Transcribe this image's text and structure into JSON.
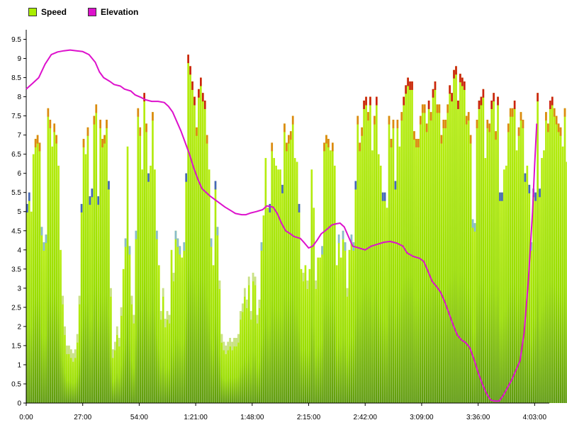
{
  "chart_data": {
    "type": "bar",
    "legend": [
      {
        "name": "Speed",
        "color": "#aaee00"
      },
      {
        "name": "Elevation",
        "color": "#dd11cc"
      }
    ],
    "x_ticks": [
      "0:00",
      "27:00",
      "54:00",
      "1:21:00",
      "1:48:00",
      "2:15:00",
      "2:42:00",
      "3:09:00",
      "3:36:00",
      "4:03:00"
    ],
    "y_ticks": [
      "0",
      "0.5",
      "1",
      "1.5",
      "2",
      "2.5",
      "3",
      "3.5",
      "4",
      "4.5",
      "5",
      "5.5",
      "6",
      "6.5",
      "7",
      "7.5",
      "8",
      "8.5",
      "9",
      "9.5"
    ],
    "xlim_minutes": [
      0,
      250
    ],
    "ylim": [
      0,
      9.75
    ],
    "grid": false,
    "legend_position": "top-left",
    "speed_minute_step": 1,
    "speed": [
      5.2,
      5.5,
      5.0,
      6.5,
      6.9,
      7.0,
      6.8,
      4.6,
      4.2,
      4.4,
      7.7,
      7.4,
      6.7,
      7.3,
      7.0,
      6.2,
      4.0,
      2.8,
      2.0,
      1.5,
      1.5,
      1.4,
      1.3,
      1.4,
      1.8,
      2.8,
      5.2,
      6.9,
      6.5,
      7.2,
      5.4,
      5.6,
      7.5,
      7.8,
      5.4,
      7.4,
      6.9,
      7.0,
      7.4,
      5.8,
      3.0,
      1.4,
      1.6,
      2.0,
      1.7,
      2.5,
      3.5,
      4.3,
      6.7,
      4.1,
      2.8,
      2.3,
      4.5,
      7.7,
      7.2,
      6.1,
      8.1,
      7.3,
      6.0,
      6.2,
      7.6,
      6.1,
      4.5,
      3.6,
      2.4,
      3.0,
      2.2,
      2.4,
      2.3,
      4.0,
      3.4,
      4.5,
      4.3,
      4.1,
      3.8,
      4.2,
      6.0,
      9.1,
      8.8,
      8.4,
      8.0,
      7.2,
      8.2,
      8.5,
      8.1,
      7.9,
      7.0,
      6.1,
      4.3,
      3.6,
      5.8,
      4.6,
      3.2,
      1.8,
      1.6,
      1.5,
      1.6,
      1.7,
      1.6,
      1.7,
      1.7,
      1.8,
      2.4,
      2.6,
      3.0,
      2.7,
      3.3,
      2.4,
      3.4,
      3.3,
      2.3,
      2.7,
      4.2,
      4.9,
      6.4,
      5.1,
      5.2,
      6.8,
      6.4,
      6.2,
      6.1,
      6.1,
      5.7,
      7.3,
      6.8,
      7.0,
      7.1,
      7.5,
      6.4,
      6.3,
      5.2,
      3.5,
      3.4,
      3.6,
      3.2,
      3.5,
      6.1,
      5.1,
      3.2,
      3.8,
      3.8,
      4.1,
      6.8,
      7.0,
      6.9,
      6.6,
      6.8,
      6.2,
      3.6,
      4.4,
      3.8,
      4.5,
      4.2,
      3.0,
      4.0,
      4.4,
      4.2,
      5.8,
      7.5,
      6.8,
      7.2,
      7.9,
      8.0,
      7.6,
      8.0,
      6.6,
      7.5,
      8.0,
      6.5,
      6.2,
      5.5,
      5.5,
      5.1,
      7.5,
      6.9,
      7.4,
      5.8,
      7.4,
      6.7,
      7.6,
      8.0,
      8.3,
      8.5,
      8.4,
      8.4,
      7.1,
      6.9,
      6.9,
      7.5,
      7.8,
      7.8,
      7.3,
      7.9,
      7.6,
      8.2,
      8.4,
      7.8,
      7.8,
      7.0,
      7.4,
      7.4,
      7.8,
      8.3,
      8.1,
      8.7,
      8.8,
      7.9,
      8.6,
      8.5,
      8.4,
      7.5,
      7.6,
      7.0,
      4.8,
      4.7,
      7.4,
      7.9,
      8.0,
      8.2,
      6.4,
      7.4,
      7.3,
      7.9,
      8.1,
      7.1,
      8.0,
      5.5,
      5.5,
      6.1,
      6.2,
      7.3,
      7.7,
      7.7,
      7.9,
      6.6,
      7.2,
      7.6,
      7.4,
      6.0,
      6.2,
      5.7,
      4.2,
      5.6,
      5.5,
      8.1,
      5.6,
      6.4,
      6.6,
      7.6,
      7.3,
      7.9,
      8.0,
      7.7,
      7.5,
      7.3,
      7.2,
      6.7,
      7.7,
      6.3,
      6.4,
      6.0,
      5.4,
      5.3,
      7.5,
      8.0,
      7.6,
      7.6,
      7.9,
      8.1,
      6.6,
      7.3,
      8.0,
      6.8,
      7.7,
      7.5,
      6.6,
      7.6,
      7.9,
      6.4,
      7.3,
      7.7,
      6.6,
      6.5,
      8.0,
      5.9,
      6.3,
      6.8,
      7.2,
      8.1,
      7.9,
      8.0,
      7.0,
      7.2,
      6.4,
      5.4,
      5.4,
      7.6,
      6.8,
      7.4,
      6.2,
      7.4,
      7.7,
      8.0,
      7.7,
      7.5,
      8.0,
      8.1,
      6.9,
      6.8,
      7.6,
      5.7
    ],
    "elevation_points": [
      [
        0,
        8.2
      ],
      [
        3,
        8.35
      ],
      [
        6,
        8.5
      ],
      [
        9,
        8.85
      ],
      [
        12,
        9.1
      ],
      [
        15,
        9.17
      ],
      [
        18,
        9.2
      ],
      [
        21,
        9.22
      ],
      [
        24,
        9.2
      ],
      [
        27,
        9.18
      ],
      [
        30,
        9.1
      ],
      [
        33,
        8.9
      ],
      [
        35,
        8.65
      ],
      [
        37,
        8.5
      ],
      [
        40,
        8.4
      ],
      [
        42,
        8.32
      ],
      [
        45,
        8.28
      ],
      [
        47,
        8.2
      ],
      [
        50,
        8.15
      ],
      [
        52,
        8.05
      ],
      [
        55,
        7.98
      ],
      [
        57,
        7.92
      ],
      [
        60,
        7.88
      ],
      [
        63,
        7.88
      ],
      [
        66,
        7.85
      ],
      [
        68,
        7.75
      ],
      [
        70,
        7.6
      ],
      [
        72,
        7.35
      ],
      [
        74,
        7.1
      ],
      [
        76,
        6.8
      ],
      [
        78,
        6.5
      ],
      [
        80,
        6.15
      ],
      [
        82,
        5.85
      ],
      [
        84,
        5.6
      ],
      [
        86,
        5.5
      ],
      [
        88,
        5.4
      ],
      [
        90,
        5.32
      ],
      [
        92,
        5.24
      ],
      [
        95,
        5.12
      ],
      [
        98,
        5.02
      ],
      [
        100,
        4.95
      ],
      [
        103,
        4.92
      ],
      [
        105,
        4.92
      ],
      [
        107,
        4.96
      ],
      [
        110,
        5.0
      ],
      [
        113,
        5.05
      ],
      [
        115,
        5.15
      ],
      [
        118,
        5.12
      ],
      [
        120,
        4.95
      ],
      [
        122,
        4.7
      ],
      [
        124,
        4.5
      ],
      [
        126,
        4.43
      ],
      [
        128,
        4.35
      ],
      [
        131,
        4.3
      ],
      [
        133,
        4.18
      ],
      [
        135,
        4.05
      ],
      [
        137,
        4.1
      ],
      [
        139,
        4.25
      ],
      [
        141,
        4.42
      ],
      [
        144,
        4.55
      ],
      [
        146,
        4.65
      ],
      [
        148,
        4.68
      ],
      [
        150,
        4.7
      ],
      [
        152,
        4.6
      ],
      [
        154,
        4.35
      ],
      [
        156,
        4.1
      ],
      [
        159,
        4.05
      ],
      [
        162,
        4.0
      ],
      [
        165,
        4.1
      ],
      [
        168,
        4.15
      ],
      [
        171,
        4.2
      ],
      [
        174,
        4.22
      ],
      [
        177,
        4.18
      ],
      [
        180,
        4.1
      ],
      [
        182,
        3.92
      ],
      [
        185,
        3.83
      ],
      [
        188,
        3.78
      ],
      [
        190,
        3.7
      ],
      [
        192,
        3.45
      ],
      [
        194,
        3.18
      ],
      [
        196,
        3.05
      ],
      [
        198,
        2.9
      ],
      [
        200,
        2.65
      ],
      [
        202,
        2.35
      ],
      [
        204,
        2.05
      ],
      [
        206,
        1.78
      ],
      [
        208,
        1.65
      ],
      [
        210,
        1.58
      ],
      [
        212,
        1.45
      ],
      [
        214,
        1.15
      ],
      [
        216,
        0.8
      ],
      [
        218,
        0.5
      ],
      [
        220,
        0.25
      ],
      [
        222,
        0.08
      ],
      [
        224,
        0.05
      ],
      [
        226,
        0.05
      ],
      [
        228,
        0.2
      ],
      [
        230,
        0.4
      ],
      [
        232,
        0.6
      ],
      [
        234,
        0.85
      ],
      [
        236,
        1.1
      ],
      [
        238,
        1.85
      ],
      [
        240,
        3.2
      ],
      [
        242,
        5.0
      ],
      [
        243,
        6.2
      ],
      [
        244,
        7.3
      ]
    ]
  }
}
